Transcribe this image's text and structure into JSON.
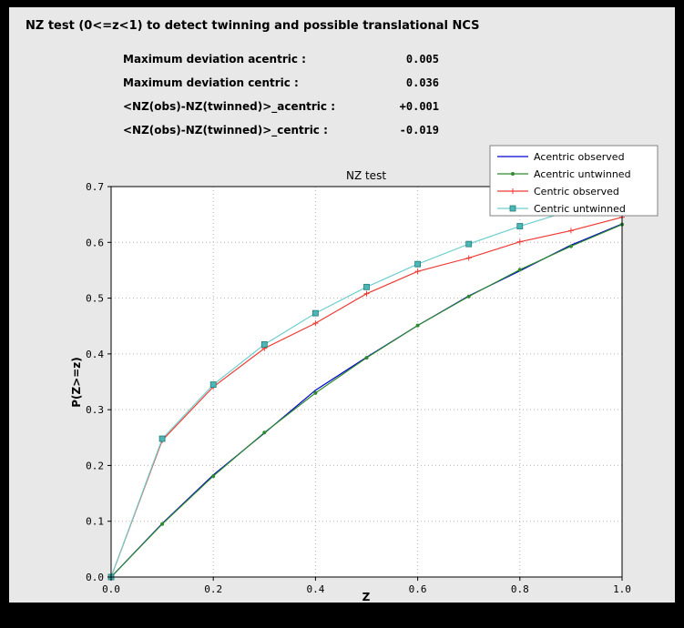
{
  "header": {
    "title": "NZ test (0<=z<1) to detect twinning and possible translational NCS"
  },
  "stats": {
    "rows": [
      {
        "label": "Maximum deviation acentric :",
        "value": "0.005"
      },
      {
        "label": "Maximum deviation centric :",
        "value": "0.036"
      },
      {
        "label": "<NZ(obs)-NZ(twinned)>_acentric :",
        "value": "+0.001"
      },
      {
        "label": "<NZ(obs)-NZ(twinned)>_centric :",
        "value": "-0.019"
      }
    ]
  },
  "chart_data": {
    "type": "line",
    "title": "NZ test",
    "xlabel": "Z",
    "ylabel": "P(Z>=z)",
    "xlim": [
      0.0,
      1.0
    ],
    "ylim": [
      0.0,
      0.7
    ],
    "x_ticks": [
      "0.0",
      "0.2",
      "0.4",
      "0.6",
      "0.8",
      "1.0"
    ],
    "y_ticks": [
      "0.0",
      "0.1",
      "0.2",
      "0.3",
      "0.4",
      "0.5",
      "0.6",
      "0.7"
    ],
    "grid": "dotted",
    "legend_position": "upper-right",
    "plot_bg": "#ffffff",
    "figure_bg": "#e8e8e8",
    "x": [
      0.0,
      0.1,
      0.2,
      0.3,
      0.4,
      0.5,
      0.6,
      0.7,
      0.8,
      0.9,
      1.0
    ],
    "series": [
      {
        "name": "Acentric observed",
        "color": "#0000cd",
        "marker": "none",
        "values": [
          0.0,
          0.096,
          0.183,
          0.258,
          0.335,
          0.394,
          0.451,
          0.504,
          0.549,
          0.595,
          0.633
        ]
      },
      {
        "name": "Acentric untwinned",
        "color": "#2e8b2e",
        "marker": "dot",
        "values": [
          0.0,
          0.095,
          0.181,
          0.259,
          0.33,
          0.393,
          0.451,
          0.503,
          0.551,
          0.593,
          0.632
        ]
      },
      {
        "name": "Centric observed",
        "color": "#ee3b33",
        "marker": "plus",
        "values": [
          0.0,
          0.245,
          0.341,
          0.41,
          0.455,
          0.508,
          0.548,
          0.572,
          0.601,
          0.621,
          0.645
        ]
      },
      {
        "name": "Centric untwinned",
        "color": "#6fcfcf",
        "marker": "square",
        "marker_fill": "#4db6b6",
        "marker_edge": "#1f7a7a",
        "values": [
          0.0,
          0.248,
          0.345,
          0.417,
          0.473,
          0.52,
          0.561,
          0.597,
          0.629,
          0.657,
          0.683
        ]
      }
    ]
  }
}
